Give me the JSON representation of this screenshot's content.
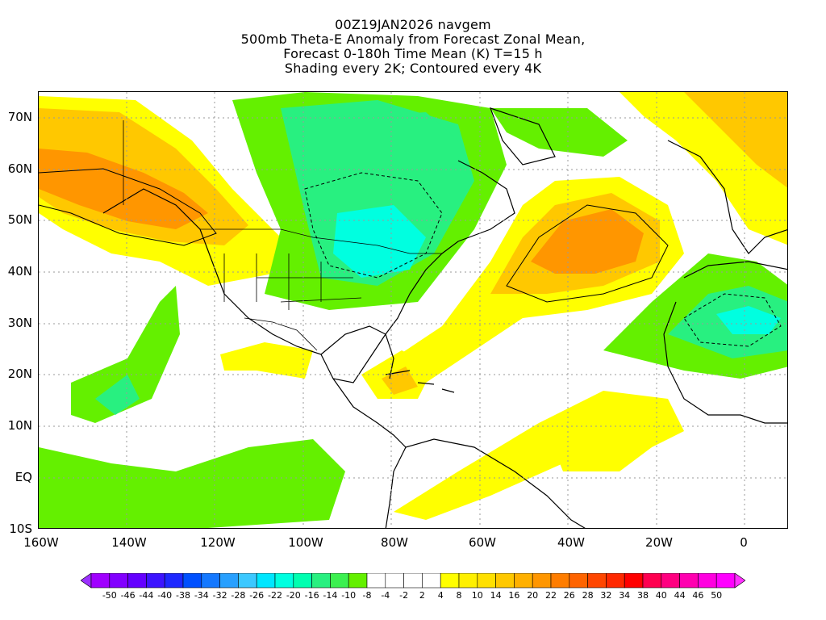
{
  "title": {
    "line1": "00Z19JAN2026 navgem",
    "line2": "500mb Theta-E Anomaly from Forecast Zonal Mean,",
    "line3": "Forecast 0-180h Time Mean (K) T=15 h",
    "line4": "Shading every 2K; Contoured every 4K"
  },
  "axes": {
    "x_ticks": [
      "160W",
      "140W",
      "120W",
      "100W",
      "80W",
      "60W",
      "40W",
      "20W",
      "0"
    ],
    "y_ticks": [
      "70N",
      "60N",
      "50N",
      "40N",
      "30N",
      "20N",
      "10N",
      "EQ",
      "10S"
    ],
    "x_range_deg": [
      -160,
      10
    ],
    "y_range_deg": [
      -10,
      75
    ],
    "grid": "dotted"
  },
  "colorbar": {
    "labels": [
      "-50",
      "-46",
      "-44",
      "-40",
      "-38",
      "-34",
      "-32",
      "-28",
      "-26",
      "-22",
      "-20",
      "-16",
      "-14",
      "-10",
      "-8",
      "-4",
      "-2",
      "2",
      "4",
      "8",
      "10",
      "14",
      "16",
      "20",
      "22",
      "26",
      "28",
      "32",
      "34",
      "38",
      "40",
      "44",
      "46",
      "50"
    ],
    "colors": [
      "#a000ff",
      "#8200ff",
      "#6400ff",
      "#3c14ff",
      "#1e28ff",
      "#0050ff",
      "#1478ff",
      "#28a0ff",
      "#3cc8ff",
      "#00e6ff",
      "#00ffe0",
      "#00ffb0",
      "#28f080",
      "#3cf050",
      "#64f000",
      "#ffffff",
      "#ffffff",
      "#ffffff",
      "#ffffff",
      "#ffff00",
      "#fff000",
      "#ffe000",
      "#ffc800",
      "#ffb000",
      "#ff9600",
      "#ff7d00",
      "#ff6400",
      "#ff4600",
      "#ff2800",
      "#ff0000",
      "#ff0050",
      "#ff0080",
      "#ff00b0",
      "#ff00e0",
      "#ff00ff"
    ],
    "min_arrow_color": "#9b30ff",
    "max_arrow_color": "#ff30ff"
  },
  "anomaly_palette": {
    "neg_strong": "#00ffe0",
    "neg_mid": "#28f080",
    "neg_weak": "#64f000",
    "pos_weak": "#ffff00",
    "pos_mid": "#ffc800",
    "pos_strong": "#ff9600",
    "pos_max": "#ff7d00"
  }
}
